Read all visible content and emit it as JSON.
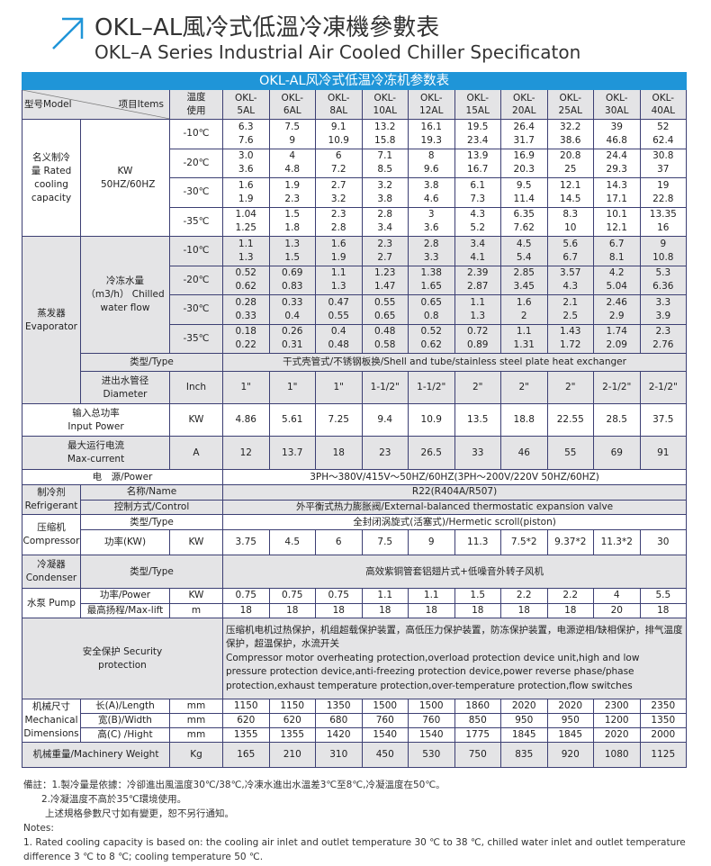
{
  "header": {
    "title_cn": "OKL–AL風冷式低溫冷凍機參數表",
    "title_en": "OKL–A Series Industrial Air Cooled Chiller Specificaton",
    "icon": "arrow-up-right-icon",
    "accent": "#1f95d8"
  },
  "table": {
    "banner": "OKL-AL风冷式低温冷冻机参数表",
    "head": {
      "model": "型号Model",
      "items": "项目Items",
      "temp": "温度使用",
      "models": [
        "OKL-5AL",
        "OKL-6AL",
        "OKL-8AL",
        "OKL-10AL",
        "OKL-12AL",
        "OKL-15AL",
        "OKL-20AL",
        "OKL-25AL",
        "OKL-30AL",
        "OKL-40AL"
      ]
    },
    "capacity": {
      "label": "名义制冷量 Rated cooling capacity",
      "unit": "KW 50HZ/60HZ",
      "rows": [
        {
          "temp": "-10℃",
          "a": [
            "6.3",
            "7.5",
            "9.1",
            "13.2",
            "16.1",
            "19.5",
            "26.4",
            "32.2",
            "39",
            "52"
          ],
          "b": [
            "7.6",
            "9",
            "10.9",
            "15.8",
            "19.3",
            "23.4",
            "31.7",
            "38.6",
            "46.8",
            "62.4"
          ]
        },
        {
          "temp": "-20℃",
          "a": [
            "3.0",
            "4",
            "6",
            "7.1",
            "8",
            "13.9",
            "16.9",
            "20.8",
            "24.4",
            "30.8"
          ],
          "b": [
            "3.6",
            "4.8",
            "7.2",
            "8.5",
            "9.6",
            "16.7",
            "20.3",
            "25",
            "29.3",
            "37"
          ]
        },
        {
          "temp": "-30℃",
          "a": [
            "1.6",
            "1.9",
            "2.7",
            "3.2",
            "3.8",
            "6.1",
            "9.5",
            "12.1",
            "14.3",
            "19"
          ],
          "b": [
            "1.9",
            "2.3",
            "3.2",
            "3.8",
            "4.6",
            "7.3",
            "11.4",
            "14.5",
            "17.1",
            "22.8"
          ]
        },
        {
          "temp": "-35℃",
          "a": [
            "1.04",
            "1.5",
            "2.3",
            "2.8",
            "3",
            "4.3",
            "6.35",
            "8.3",
            "10.1",
            "13.35"
          ],
          "b": [
            "1.25",
            "1.8",
            "2.8",
            "3.4",
            "3.6",
            "5.2",
            "7.62",
            "10",
            "12.1",
            "16"
          ]
        }
      ]
    },
    "evaporator": {
      "label": "蒸发器 Evaporator",
      "flow_label": "冷冻水量（m3/h） Chilled water flow",
      "rows": [
        {
          "temp": "-10℃",
          "a": [
            "1.1",
            "1.3",
            "1.6",
            "2.3",
            "2.8",
            "3.4",
            "4.5",
            "5.6",
            "6.7",
            "9"
          ],
          "b": [
            "1.3",
            "1.5",
            "1.9",
            "2.7",
            "3.3",
            "4.1",
            "5.4",
            "6.7",
            "8.1",
            "10.8"
          ]
        },
        {
          "temp": "-20℃",
          "a": [
            "0.52",
            "0.69",
            "1.1",
            "1.23",
            "1.38",
            "2.39",
            "2.85",
            "3.57",
            "4.2",
            "5.3"
          ],
          "b": [
            "0.62",
            "0.83",
            "1.3",
            "1.47",
            "1.65",
            "2.87",
            "3.45",
            "4.3",
            "5.04",
            "6.36"
          ]
        },
        {
          "temp": "-30℃",
          "a": [
            "0.28",
            "0.33",
            "0.47",
            "0.55",
            "0.65",
            "1.1",
            "1.6",
            "2.1",
            "2.46",
            "3.3"
          ],
          "b": [
            "0.33",
            "0.4",
            "0.55",
            "0.65",
            "0.8",
            "1.3",
            "2",
            "2.5",
            "2.9",
            "3.9"
          ]
        },
        {
          "temp": "-35℃",
          "a": [
            "0.18",
            "0.26",
            "0.4",
            "0.48",
            "0.52",
            "0.72",
            "1.1",
            "1.43",
            "1.74",
            "2.3"
          ],
          "b": [
            "0.22",
            "0.31",
            "0.48",
            "0.58",
            "0.62",
            "0.89",
            "1.31",
            "1.72",
            "2.09",
            "2.76"
          ]
        }
      ],
      "type_label": "类型/Type",
      "type_value": "干式壳管式/不锈钢板换/Shell and tube/stainless steel plate heat exchanger",
      "diameter_label": "进出水管径 Diameter",
      "diameter_unit": "Inch",
      "diameter": [
        "1\"",
        "1\"",
        "1\"",
        "1-1/2\"",
        "1-1/2\"",
        "2\"",
        "2\"",
        "2\"",
        "2-1/2\"",
        "2-1/2\""
      ]
    },
    "input_power": {
      "label": "输入总功率 Input Power",
      "unit": "KW",
      "values": [
        "4.86",
        "5.61",
        "7.25",
        "9.4",
        "10.9",
        "13.5",
        "18.8",
        "22.55",
        "28.5",
        "37.5"
      ]
    },
    "max_current": {
      "label": "最大运行电流 Max-current",
      "unit": "A",
      "values": [
        "12",
        "13.7",
        "18",
        "23",
        "26.5",
        "33",
        "46",
        "55",
        "69",
        "91"
      ]
    },
    "power": {
      "label": "电　源/Power",
      "value": "3PH～380V/415V～50HZ/60HZ(3PH～200V/220V  50HZ/60HZ)"
    },
    "refrigerant": {
      "label": "制冷剂 Refrigerant",
      "name_label": "名称/Name",
      "name_value": "R22(R404A/R507)",
      "control_label": "控制方式/Control",
      "control_value": "外平衡式热力膨胀阀/External-balanced thermostatic expansion valve"
    },
    "compressor": {
      "label": "压缩机 Compressor",
      "type_label": "类型/Type",
      "type_value": "全封闭涡旋式(活塞式)/Hermetic scroll(piston)",
      "power_label": "功率(KW)",
      "unit": "KW",
      "values": [
        "3.75",
        "4.5",
        "6",
        "7.5",
        "9",
        "11.3",
        "7.5*2",
        "9.37*2",
        "11.3*2",
        "30"
      ]
    },
    "condenser": {
      "label": "冷凝器 Condenser",
      "type_label": "类型/Type",
      "type_value": "高效紫铜管套铝翅片式+低噪音外转子风机"
    },
    "pump": {
      "label": "水泵 Pump",
      "power_label": "功率/Power",
      "power_unit": "KW",
      "power": [
        "0.75",
        "0.75",
        "0.75",
        "1.1",
        "1.1",
        "1.5",
        "2.2",
        "2.2",
        "4",
        "5.5"
      ],
      "lift_label": "最高扬程/Max-lift",
      "lift_unit": "m",
      "lift": [
        "18",
        "18",
        "18",
        "18",
        "18",
        "18",
        "18",
        "18",
        "20",
        "18"
      ]
    },
    "security": {
      "label": "安全保护 Security protection",
      "value_cn": "压缩机电机过热保护，机组超载保护装置，高低压力保护装置，防冻保护装置，电源逆相/缺相保护，排气温度保护，超温保护，水流开关",
      "value_en": " Compressor motor overheating protection,overload protection device unit,high and low pressure protection device,anti-freezing protection device,power reverse phase/phase protection,exhaust temperature protection,over-temperature protection,flow switches"
    },
    "dimensions": {
      "label": "机械尺寸 Mechanical Dimensions",
      "unit": "mm",
      "length_label": "长(A)/Length",
      "length": [
        "1150",
        "1150",
        "1350",
        "1500",
        "1500",
        "1860",
        "2020",
        "2020",
        "2300",
        "2350"
      ],
      "width_label": "宽(B)/Width",
      "width": [
        "620",
        "620",
        "680",
        "760",
        "760",
        "850",
        "950",
        "950",
        "1200",
        "1350"
      ],
      "height_label": "高(C) /Hight",
      "height": [
        "1355",
        "1355",
        "1420",
        "1540",
        "1540",
        "1775",
        "1845",
        "1845",
        "2020",
        "2000"
      ]
    },
    "weight": {
      "label": "机械重量/Machinery Weight",
      "unit": "Kg",
      "values": [
        "165",
        "210",
        "310",
        "450",
        "530",
        "750",
        "835",
        "920",
        "1080",
        "1125"
      ]
    }
  },
  "notes": {
    "cn1": "備註：1.製冷量是依據：冷卻進出風溫度30℃/38℃,冷凍水進出水溫差3℃至8℃,冷凝溫度在50℃。",
    "cn2": "2.冷凝溫度不高於35℃環境使用。",
    "cn3": "上述規格參數尺寸如有變更，恕不另行通知。",
    "en_title": "Notes:",
    "en1": "1. Rated cooling capacity is based on: the cooling air inlet and outlet temperature 30 ℃ to 38 ℃, chilled water inlet and outlet temperature",
    "en2": "difference 3 ℃ to 8 ℃; cooling temperature 50 ℃."
  }
}
